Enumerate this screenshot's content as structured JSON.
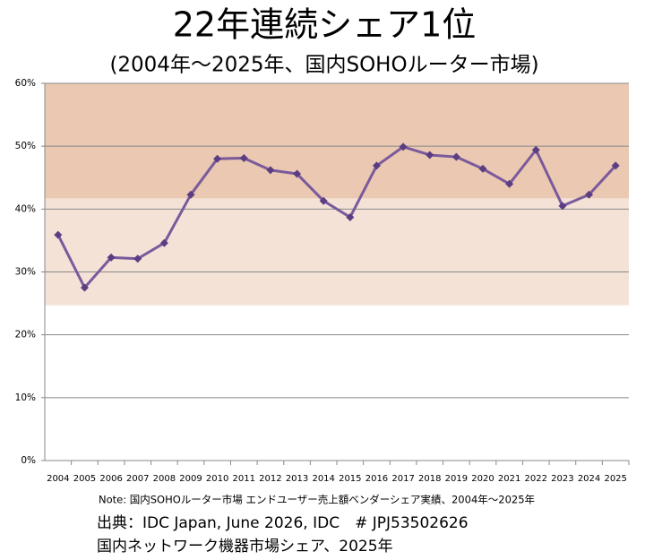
{
  "chart_data": {
    "type": "line",
    "title": "22年連続シェア1位",
    "subtitle": "(2004年～2025年、国内SOHOルーター市場)",
    "categories": [
      "2004",
      "2005",
      "2006",
      "2007",
      "2008",
      "2009",
      "2010",
      "2011",
      "2012",
      "2013",
      "2014",
      "2015",
      "2016",
      "2017",
      "2018",
      "2019",
      "2020",
      "2021",
      "2022",
      "2023",
      "2024",
      "2025"
    ],
    "series": [
      {
        "color": "#7a5a9c",
        "marker_color": "#5b3d82",
        "values": [
          35.9,
          27.5,
          32.3,
          32.1,
          34.6,
          42.3,
          48.0,
          48.1,
          46.2,
          45.6,
          41.3,
          38.7,
          46.9,
          49.9,
          48.6,
          48.3,
          46.4,
          44.0,
          49.4,
          40.5,
          42.3,
          46.9
        ]
      }
    ],
    "bands": [
      {
        "from": 41.7,
        "to": 60,
        "color": "#eac8b1"
      },
      {
        "from": 24.7,
        "to": 41.7,
        "color": "#f4e2d7"
      }
    ],
    "ylim": [
      0,
      60
    ],
    "yticks": [
      {
        "value": 0,
        "label": "0%"
      },
      {
        "value": 10,
        "label": "10%"
      },
      {
        "value": 20,
        "label": "20%"
      },
      {
        "value": 30,
        "label": "30%"
      },
      {
        "value": 40,
        "label": "40%"
      },
      {
        "value": 50,
        "label": "50%"
      },
      {
        "value": 60,
        "label": "60%"
      }
    ],
    "grid": true,
    "note": "Note: 国内SOHOルーター市場 エンドユーザー売上額ベンダーシェア実績、2004年～2025年",
    "source": "出典：IDC Japan, June 2026, IDC　# JPJ53502626",
    "source_title": "国内ネットワーク機器市場シェア、2025年"
  }
}
